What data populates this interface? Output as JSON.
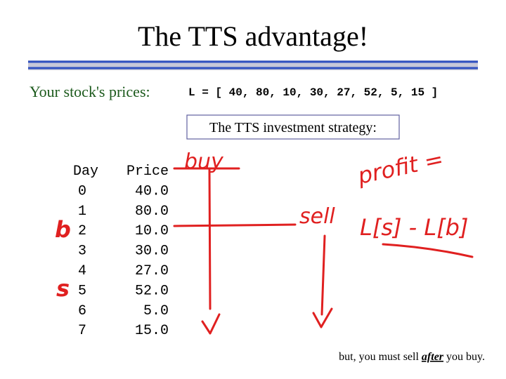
{
  "header": {
    "title": "The TTS advantage!"
  },
  "prompt": "Your stock's prices:",
  "code": "L = [ 40, 80, 10, 30, 27, 52, 5, 15 ]",
  "strategy_box": "The TTS investment strategy:",
  "table": {
    "columns": [
      "Day",
      "Price"
    ],
    "rows": [
      [
        "0",
        "40.0"
      ],
      [
        "1",
        "80.0"
      ],
      [
        "2",
        "10.0"
      ],
      [
        "3",
        "30.0"
      ],
      [
        "4",
        "27.0"
      ],
      [
        "5",
        "52.0"
      ],
      [
        "6",
        "5.0"
      ],
      [
        "7",
        "15.0"
      ]
    ]
  },
  "annotations": {
    "buy": "buy",
    "sell": "sell",
    "profit": "profit =",
    "formula": "L[s] - L[b]",
    "b": "b",
    "s": "s"
  },
  "footer": {
    "before": "but, you must sell",
    "emphasis": "after",
    "after": "you buy."
  }
}
